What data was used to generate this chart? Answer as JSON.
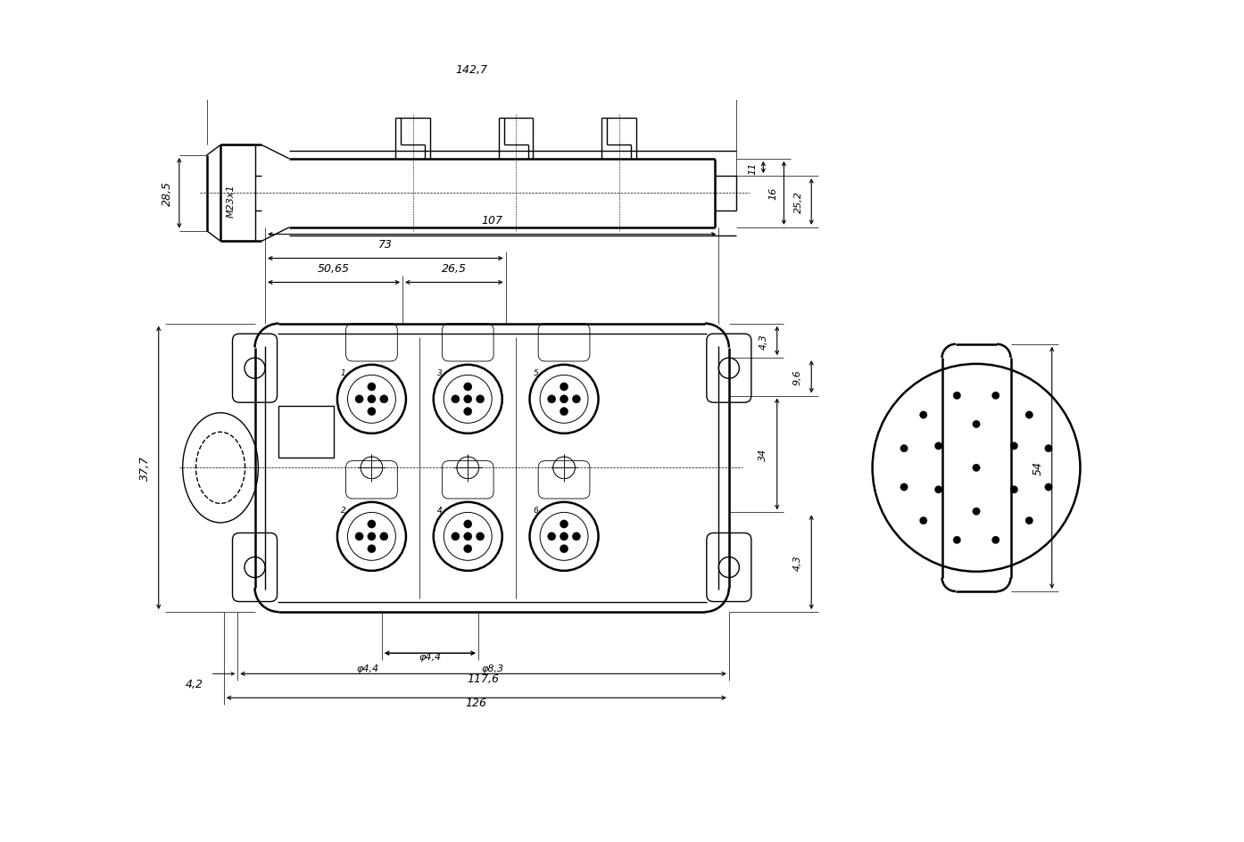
{
  "bg_color": "#ffffff",
  "line_color": "#000000",
  "lw": 1.0,
  "tlw": 1.8,
  "fs": 9,
  "top_view": {
    "dim_142_7": "142,7",
    "dim_28_5": "28,5",
    "dim_M23x1": "M23x1",
    "dim_11": "11",
    "dim_16": "16",
    "dim_25_2": "25,2"
  },
  "front_view": {
    "dim_107": "107",
    "dim_73": "73",
    "dim_50_65": "50,65",
    "dim_26_5": "26,5",
    "dim_4_3top": "4,3",
    "dim_9_6": "9,6",
    "dim_34": "34",
    "dim_4_3bot": "4,3",
    "dim_37_7": "37,7",
    "dim_phi4_4": "φ4,4",
    "dim_phi8_3": "φ8,3",
    "dim_117_6": "117,6",
    "dim_126": "126",
    "dim_4_2": "4,2"
  },
  "side_view": {
    "dim_54": "54"
  }
}
